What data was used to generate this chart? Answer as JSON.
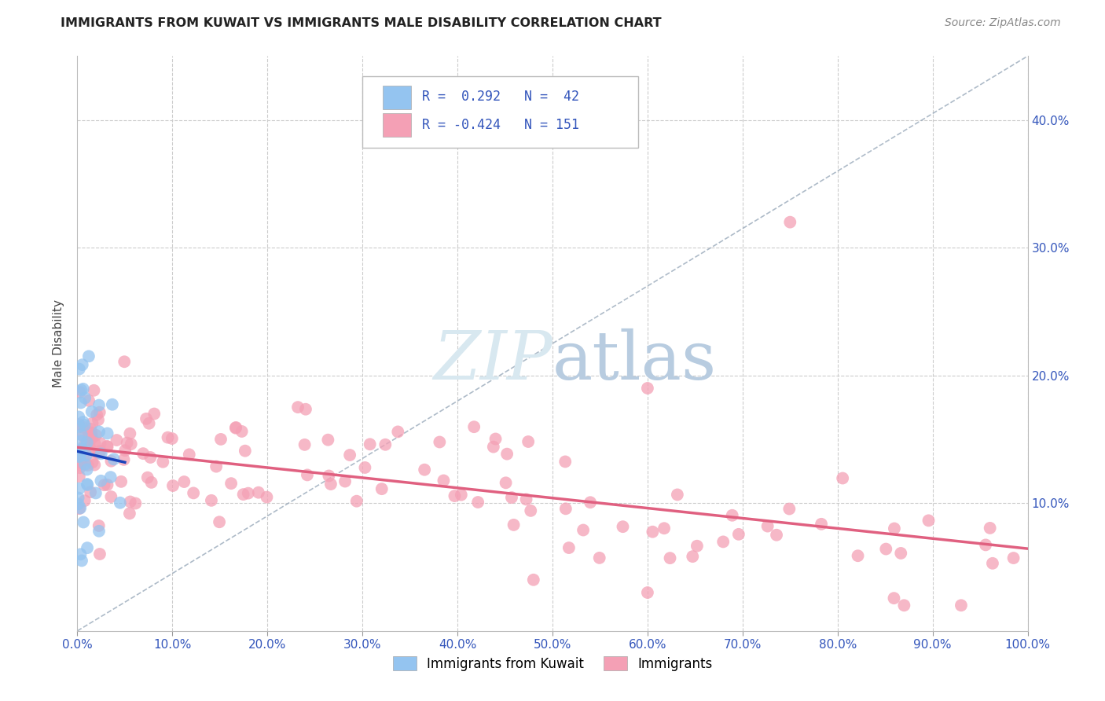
{
  "title": "IMMIGRANTS FROM KUWAIT VS IMMIGRANTS MALE DISABILITY CORRELATION CHART",
  "source": "Source: ZipAtlas.com",
  "ylabel": "Male Disability",
  "legend_labels": [
    "Immigrants from Kuwait",
    "Immigrants"
  ],
  "blue_R": 0.292,
  "blue_N": 42,
  "pink_R": -0.424,
  "pink_N": 151,
  "xlim": [
    0.0,
    1.0
  ],
  "ylim": [
    0.0,
    0.45
  ],
  "x_ticks": [
    0.0,
    0.1,
    0.2,
    0.3,
    0.4,
    0.5,
    0.6,
    0.7,
    0.8,
    0.9,
    1.0
  ],
  "y_ticks": [
    0.1,
    0.2,
    0.3,
    0.4
  ],
  "blue_color": "#94C4F0",
  "pink_color": "#F4A0B5",
  "blue_line_color": "#1A44BB",
  "pink_line_color": "#E06080",
  "dash_line_color": "#9AAABB",
  "watermark_color": "#D8E8F0",
  "title_fontsize": 11.5,
  "axis_tick_color": "#3355BB",
  "ylabel_color": "#444444",
  "source_color": "#888888"
}
